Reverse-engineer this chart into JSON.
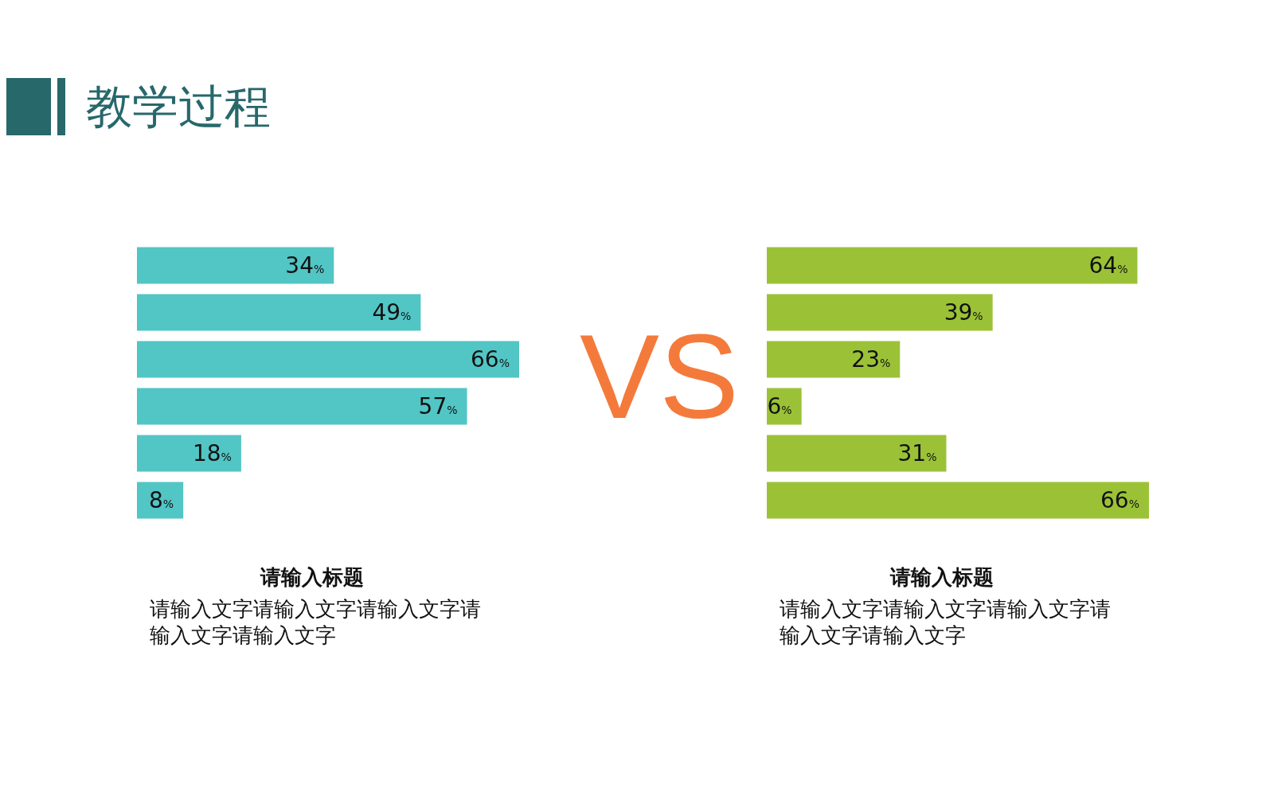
{
  "chart_data": [
    {
      "type": "other",
      "title": "教学过程",
      "annotations": [
        "VS"
      ]
    },
    {
      "type": "bar",
      "orientation": "horizontal",
      "title": "请输入标题",
      "annotations": [
        "请输入文字请输入文字请输入文字请输入文字请输入文字"
      ],
      "categories": [
        null,
        null,
        null,
        null,
        null,
        null
      ],
      "values": [
        34,
        49,
        66,
        57,
        18,
        8
      ],
      "value_labels": [
        "34%",
        "49%",
        "66%",
        "57%",
        "18%",
        "8%"
      ],
      "color": "#52c5c5"
    },
    {
      "type": "bar",
      "orientation": "horizontal",
      "title": "请输入标题",
      "annotations": [
        "请输入文字请输入文字请输入文字请输入文字请输入文字"
      ],
      "categories": [
        null,
        null,
        null,
        null,
        null,
        null
      ],
      "values": [
        64,
        39,
        23,
        6,
        31,
        66
      ],
      "value_labels": [
        "64%",
        "39%",
        "23%",
        "6%",
        "31%",
        "66%"
      ],
      "color": "#9bc237"
    }
  ]
}
